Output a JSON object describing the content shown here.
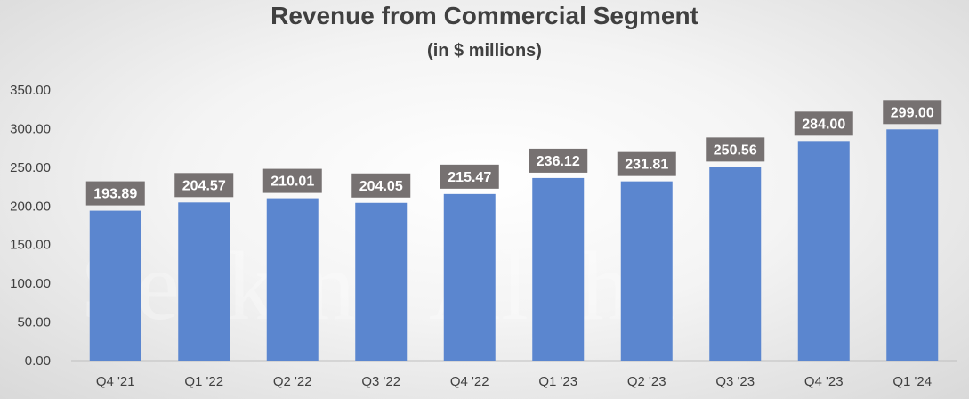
{
  "chart_data": {
    "type": "bar",
    "title": "Revenue from Commercial Segment",
    "subtitle": "(in $ millions)",
    "categories": [
      "Q4 '21",
      "Q1 '22",
      "Q2 '22",
      "Q3 '22",
      "Q4 '22",
      "Q1 '23",
      "Q2 '23",
      "Q3 '23",
      "Q4 '23",
      "Q1 '24"
    ],
    "values": [
      193.89,
      204.57,
      210.01,
      204.05,
      215.47,
      236.12,
      231.81,
      250.56,
      284.0,
      299.0
    ],
    "value_labels": [
      "193.89",
      "204.57",
      "210.01",
      "204.05",
      "215.47",
      "236.12",
      "231.81",
      "250.56",
      "284.00",
      "299.00"
    ],
    "yticks": [
      "0.00",
      "50.00",
      "100.00",
      "150.00",
      "200.00",
      "250.00",
      "300.00",
      "350.00"
    ],
    "ylim": [
      0,
      350
    ],
    "xlabel": "",
    "ylabel": "",
    "grid": false,
    "watermark": "Seeking Alpha",
    "colors": {
      "bar": "#5b86cf",
      "label_bg": "#767171",
      "label_text": "#ffffff",
      "title": "#404040",
      "axis_text": "#404040"
    }
  }
}
